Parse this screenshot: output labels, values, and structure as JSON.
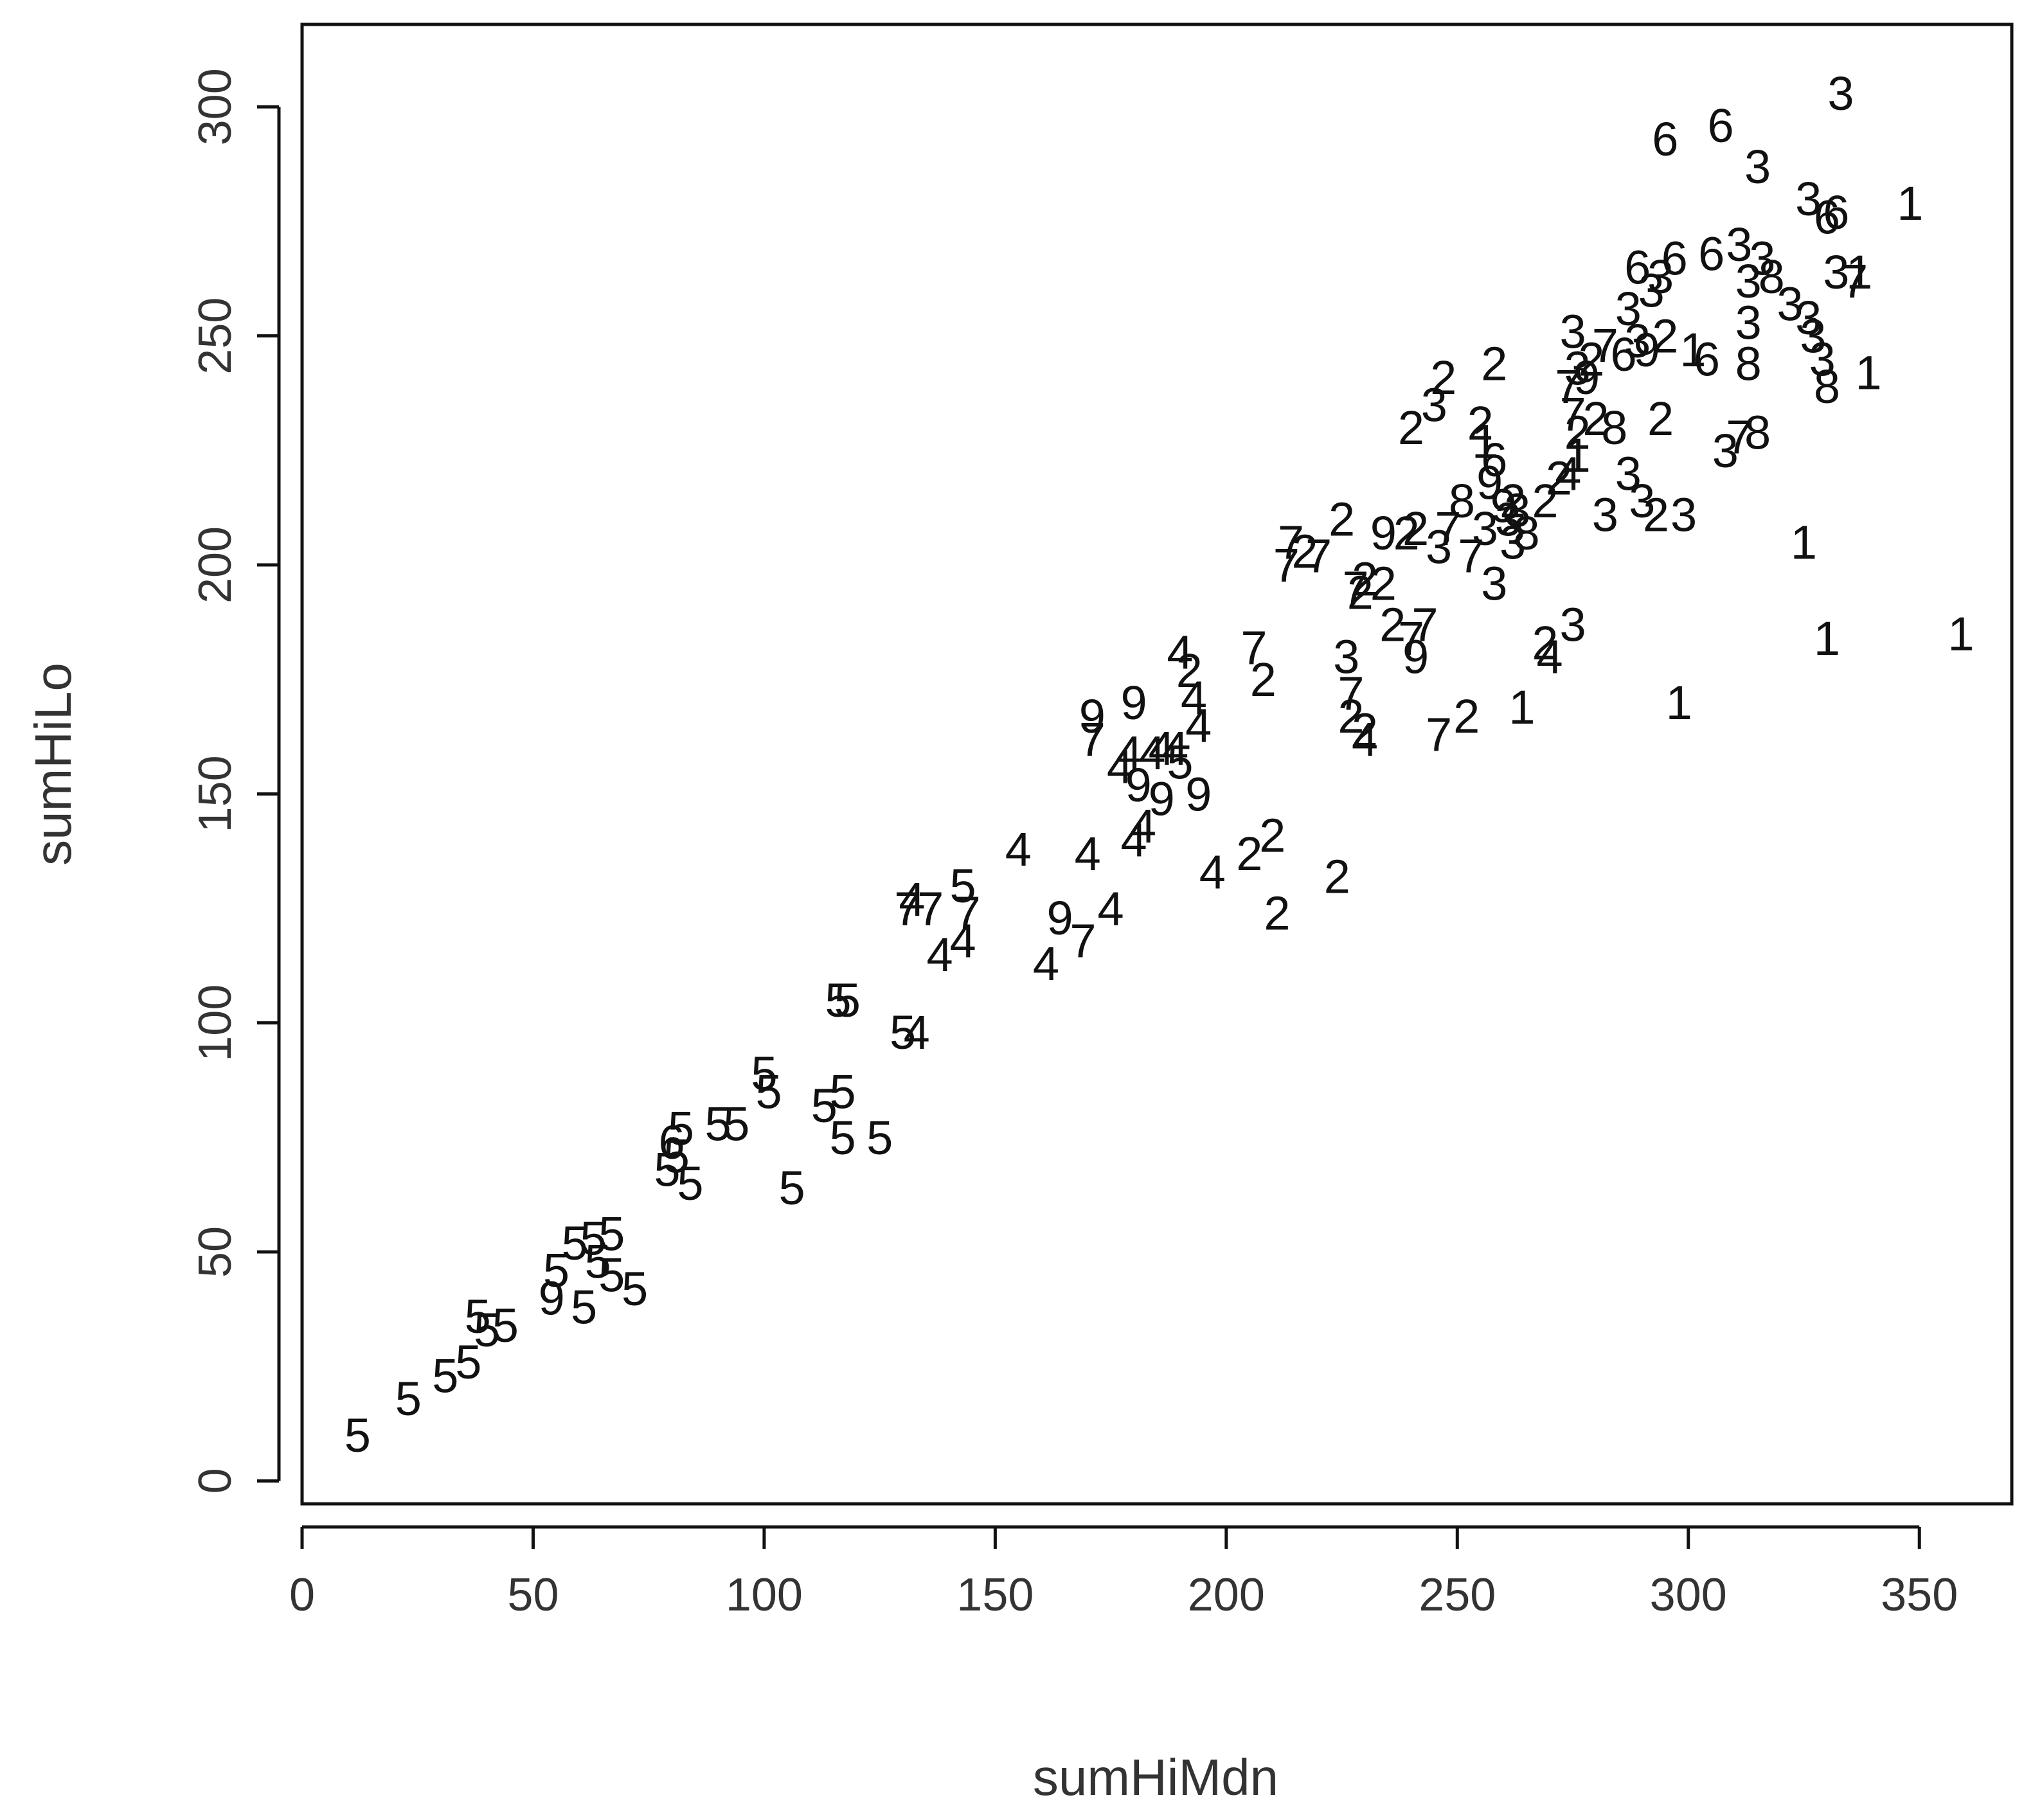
{
  "chart_data": {
    "type": "scatter",
    "marker_style": "digit labels",
    "xlabel": "sumHiMdn",
    "ylabel": "sumHiLo",
    "xlim": [
      0,
      370
    ],
    "ylim": [
      -5,
      318
    ],
    "xticks": [
      0,
      50,
      100,
      150,
      200,
      250,
      300,
      350
    ],
    "yticks": [
      0,
      50,
      100,
      150,
      200,
      250,
      300
    ],
    "grid": false,
    "points": [
      {
        "x": 12,
        "y": 10,
        "label": "5"
      },
      {
        "x": 23,
        "y": 18,
        "label": "5"
      },
      {
        "x": 31,
        "y": 23,
        "label": "5"
      },
      {
        "x": 36,
        "y": 26,
        "label": "5"
      },
      {
        "x": 38,
        "y": 36,
        "label": "5"
      },
      {
        "x": 40,
        "y": 33,
        "label": "5"
      },
      {
        "x": 44,
        "y": 34,
        "label": "5"
      },
      {
        "x": 54,
        "y": 40,
        "label": "9"
      },
      {
        "x": 55,
        "y": 46,
        "label": "5"
      },
      {
        "x": 61,
        "y": 38,
        "label": "5"
      },
      {
        "x": 59,
        "y": 52,
        "label": "5"
      },
      {
        "x": 63,
        "y": 53,
        "label": "5"
      },
      {
        "x": 64,
        "y": 48,
        "label": "5"
      },
      {
        "x": 67,
        "y": 54,
        "label": "5"
      },
      {
        "x": 67,
        "y": 45,
        "label": "5"
      },
      {
        "x": 72,
        "y": 42,
        "label": "5"
      },
      {
        "x": 79,
        "y": 68,
        "label": "5"
      },
      {
        "x": 80,
        "y": 74,
        "label": "6"
      },
      {
        "x": 81,
        "y": 71,
        "label": "5"
      },
      {
        "x": 82,
        "y": 77,
        "label": "5"
      },
      {
        "x": 84,
        "y": 65,
        "label": "5"
      },
      {
        "x": 90,
        "y": 78,
        "label": "5"
      },
      {
        "x": 94,
        "y": 78,
        "label": "5"
      },
      {
        "x": 100,
        "y": 89,
        "label": "5"
      },
      {
        "x": 101,
        "y": 85,
        "label": "5"
      },
      {
        "x": 106,
        "y": 64,
        "label": "5"
      },
      {
        "x": 113,
        "y": 82,
        "label": "5"
      },
      {
        "x": 117,
        "y": 85,
        "label": "5"
      },
      {
        "x": 117,
        "y": 75,
        "label": "5"
      },
      {
        "x": 125,
        "y": 75,
        "label": "5"
      },
      {
        "x": 116,
        "y": 105,
        "label": "5"
      },
      {
        "x": 118,
        "y": 105,
        "label": "5"
      },
      {
        "x": 130,
        "y": 98,
        "label": "5"
      },
      {
        "x": 133,
        "y": 98,
        "label": "4"
      },
      {
        "x": 131,
        "y": 125,
        "label": "7"
      },
      {
        "x": 132,
        "y": 127,
        "label": "4"
      },
      {
        "x": 136,
        "y": 125,
        "label": "7"
      },
      {
        "x": 138,
        "y": 115,
        "label": "4"
      },
      {
        "x": 143,
        "y": 118,
        "label": "4"
      },
      {
        "x": 144,
        "y": 124,
        "label": "7"
      },
      {
        "x": 143,
        "y": 130,
        "label": "5"
      },
      {
        "x": 155,
        "y": 138,
        "label": "4"
      },
      {
        "x": 161,
        "y": 113,
        "label": "4"
      },
      {
        "x": 164,
        "y": 123,
        "label": "9"
      },
      {
        "x": 169,
        "y": 118,
        "label": "7"
      },
      {
        "x": 170,
        "y": 137,
        "label": "4"
      },
      {
        "x": 175,
        "y": 125,
        "label": "4"
      },
      {
        "x": 171,
        "y": 162,
        "label": "7"
      },
      {
        "x": 171,
        "y": 167,
        "label": "9"
      },
      {
        "x": 180,
        "y": 170,
        "label": "9"
      },
      {
        "x": 177,
        "y": 156,
        "label": "4"
      },
      {
        "x": 179,
        "y": 159,
        "label": "4"
      },
      {
        "x": 181,
        "y": 152,
        "label": "9"
      },
      {
        "x": 184,
        "y": 159,
        "label": "4"
      },
      {
        "x": 186,
        "y": 160,
        "label": "4"
      },
      {
        "x": 180,
        "y": 140,
        "label": "4"
      },
      {
        "x": 182,
        "y": 143,
        "label": "4"
      },
      {
        "x": 186,
        "y": 149,
        "label": "9"
      },
      {
        "x": 189,
        "y": 160,
        "label": "4"
      },
      {
        "x": 190,
        "y": 157,
        "label": "5"
      },
      {
        "x": 190,
        "y": 181,
        "label": "4"
      },
      {
        "x": 192,
        "y": 177,
        "label": "2"
      },
      {
        "x": 193,
        "y": 171,
        "label": "4"
      },
      {
        "x": 194,
        "y": 165,
        "label": "4"
      },
      {
        "x": 194,
        "y": 150,
        "label": "9"
      },
      {
        "x": 197,
        "y": 133,
        "label": "4"
      },
      {
        "x": 205,
        "y": 137,
        "label": "2"
      },
      {
        "x": 210,
        "y": 141,
        "label": "2"
      },
      {
        "x": 211,
        "y": 124,
        "label": "2"
      },
      {
        "x": 208,
        "y": 175,
        "label": "2"
      },
      {
        "x": 206,
        "y": 182,
        "label": "7"
      },
      {
        "x": 224,
        "y": 132,
        "label": "2"
      },
      {
        "x": 226,
        "y": 180,
        "label": "3"
      },
      {
        "x": 227,
        "y": 172,
        "label": "7"
      },
      {
        "x": 227,
        "y": 167,
        "label": "2"
      },
      {
        "x": 230,
        "y": 164,
        "label": "2"
      },
      {
        "x": 230,
        "y": 162,
        "label": "4"
      },
      {
        "x": 213,
        "y": 200,
        "label": "7"
      },
      {
        "x": 214,
        "y": 205,
        "label": "7"
      },
      {
        "x": 217,
        "y": 203,
        "label": "2"
      },
      {
        "x": 220,
        "y": 202,
        "label": "7"
      },
      {
        "x": 225,
        "y": 210,
        "label": "2"
      },
      {
        "x": 228,
        "y": 195,
        "label": "7"
      },
      {
        "x": 229,
        "y": 194,
        "label": "2"
      },
      {
        "x": 230,
        "y": 197,
        "label": "2"
      },
      {
        "x": 234,
        "y": 196,
        "label": "2"
      },
      {
        "x": 234,
        "y": 207,
        "label": "9"
      },
      {
        "x": 239,
        "y": 207,
        "label": "2"
      },
      {
        "x": 241,
        "y": 208,
        "label": "2"
      },
      {
        "x": 236,
        "y": 187,
        "label": "2"
      },
      {
        "x": 240,
        "y": 184,
        "label": "7"
      },
      {
        "x": 243,
        "y": 187,
        "label": "7"
      },
      {
        "x": 241,
        "y": 180,
        "label": "9"
      },
      {
        "x": 246,
        "y": 204,
        "label": "3"
      },
      {
        "x": 248,
        "y": 208,
        "label": "7"
      },
      {
        "x": 253,
        "y": 202,
        "label": "7"
      },
      {
        "x": 256,
        "y": 208,
        "label": "3"
      },
      {
        "x": 251,
        "y": 214,
        "label": "8"
      },
      {
        "x": 257,
        "y": 218,
        "label": "9"
      },
      {
        "x": 258,
        "y": 196,
        "label": "3"
      },
      {
        "x": 260,
        "y": 213,
        "label": "9"
      },
      {
        "x": 261,
        "y": 210,
        "label": "3"
      },
      {
        "x": 262,
        "y": 214,
        "label": "2"
      },
      {
        "x": 263,
        "y": 212,
        "label": "3"
      },
      {
        "x": 265,
        "y": 207,
        "label": "8"
      },
      {
        "x": 262,
        "y": 205,
        "label": "3"
      },
      {
        "x": 240,
        "y": 230,
        "label": "2"
      },
      {
        "x": 245,
        "y": 235,
        "label": "3"
      },
      {
        "x": 247,
        "y": 241,
        "label": "2"
      },
      {
        "x": 258,
        "y": 244,
        "label": "2"
      },
      {
        "x": 255,
        "y": 231,
        "label": "2"
      },
      {
        "x": 256,
        "y": 227,
        "label": "1"
      },
      {
        "x": 258,
        "y": 223,
        "label": "6"
      },
      {
        "x": 269,
        "y": 214,
        "label": "2"
      },
      {
        "x": 272,
        "y": 219,
        "label": "2"
      },
      {
        "x": 274,
        "y": 220,
        "label": "4"
      },
      {
        "x": 276,
        "y": 224,
        "label": "1"
      },
      {
        "x": 276,
        "y": 229,
        "label": "2"
      },
      {
        "x": 275,
        "y": 233,
        "label": "7"
      },
      {
        "x": 280,
        "y": 232,
        "label": "2"
      },
      {
        "x": 284,
        "y": 230,
        "label": "8"
      },
      {
        "x": 287,
        "y": 220,
        "label": "3"
      },
      {
        "x": 282,
        "y": 211,
        "label": "3"
      },
      {
        "x": 293,
        "y": 211,
        "label": "2"
      },
      {
        "x": 299,
        "y": 211,
        "label": "3"
      },
      {
        "x": 290,
        "y": 214,
        "label": "3"
      },
      {
        "x": 264,
        "y": 169,
        "label": "1"
      },
      {
        "x": 270,
        "y": 180,
        "label": "4"
      },
      {
        "x": 269,
        "y": 183,
        "label": "2"
      },
      {
        "x": 275,
        "y": 187,
        "label": "3"
      },
      {
        "x": 252,
        "y": 167,
        "label": "2"
      },
      {
        "x": 246,
        "y": 163,
        "label": "7"
      },
      {
        "x": 298,
        "y": 170,
        "label": "1"
      },
      {
        "x": 274,
        "y": 239,
        "label": "7"
      },
      {
        "x": 275,
        "y": 251,
        "label": "3"
      },
      {
        "x": 276,
        "y": 243,
        "label": "3"
      },
      {
        "x": 278,
        "y": 241,
        "label": "9"
      },
      {
        "x": 279,
        "y": 245,
        "label": "2"
      },
      {
        "x": 282,
        "y": 248,
        "label": "7"
      },
      {
        "x": 286,
        "y": 246,
        "label": "6"
      },
      {
        "x": 289,
        "y": 249,
        "label": "3"
      },
      {
        "x": 291,
        "y": 247,
        "label": "9"
      },
      {
        "x": 295,
        "y": 250,
        "label": "2"
      },
      {
        "x": 294,
        "y": 232,
        "label": "2"
      },
      {
        "x": 301,
        "y": 247,
        "label": "1"
      },
      {
        "x": 304,
        "y": 245,
        "label": "6"
      },
      {
        "x": 308,
        "y": 225,
        "label": "3"
      },
      {
        "x": 311,
        "y": 228,
        "label": "7"
      },
      {
        "x": 315,
        "y": 229,
        "label": "8"
      },
      {
        "x": 313,
        "y": 244,
        "label": "8"
      },
      {
        "x": 313,
        "y": 253,
        "label": "3"
      },
      {
        "x": 287,
        "y": 256,
        "label": "3"
      },
      {
        "x": 289,
        "y": 265,
        "label": "6"
      },
      {
        "x": 292,
        "y": 260,
        "label": "3"
      },
      {
        "x": 294,
        "y": 263,
        "label": "3"
      },
      {
        "x": 297,
        "y": 267,
        "label": "6"
      },
      {
        "x": 305,
        "y": 268,
        "label": "6"
      },
      {
        "x": 311,
        "y": 270,
        "label": "3"
      },
      {
        "x": 313,
        "y": 262,
        "label": "3"
      },
      {
        "x": 316,
        "y": 267,
        "label": "3"
      },
      {
        "x": 318,
        "y": 263,
        "label": "8"
      },
      {
        "x": 322,
        "y": 257,
        "label": "3"
      },
      {
        "x": 326,
        "y": 254,
        "label": "3"
      },
      {
        "x": 327,
        "y": 250,
        "label": "3"
      },
      {
        "x": 329,
        "y": 245,
        "label": "3"
      },
      {
        "x": 330,
        "y": 239,
        "label": "8"
      },
      {
        "x": 332,
        "y": 264,
        "label": "3"
      },
      {
        "x": 337,
        "y": 264,
        "label": "1"
      },
      {
        "x": 336,
        "y": 262,
        "label": "7"
      },
      {
        "x": 339,
        "y": 242,
        "label": "1"
      },
      {
        "x": 325,
        "y": 205,
        "label": "1"
      },
      {
        "x": 330,
        "y": 184,
        "label": "1"
      },
      {
        "x": 359,
        "y": 185,
        "label": "1"
      },
      {
        "x": 326,
        "y": 280,
        "label": "3"
      },
      {
        "x": 332,
        "y": 277,
        "label": "6"
      },
      {
        "x": 330,
        "y": 276,
        "label": "6"
      },
      {
        "x": 348,
        "y": 279,
        "label": "1"
      },
      {
        "x": 295,
        "y": 293,
        "label": "6"
      },
      {
        "x": 307,
        "y": 296,
        "label": "6"
      },
      {
        "x": 315,
        "y": 287,
        "label": "3"
      },
      {
        "x": 333,
        "y": 303,
        "label": "3"
      }
    ]
  }
}
